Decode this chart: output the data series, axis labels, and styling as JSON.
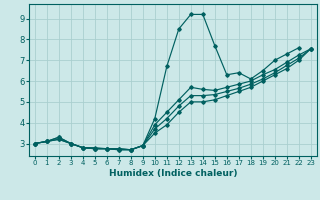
{
  "xlabel": "Humidex (Indice chaleur)",
  "background_color": "#cce8e8",
  "grid_color": "#aacfcf",
  "line_color": "#006060",
  "xlim": [
    -0.5,
    23.5
  ],
  "ylim": [
    2.4,
    9.7
  ],
  "xticks": [
    0,
    1,
    2,
    3,
    4,
    5,
    6,
    7,
    8,
    9,
    10,
    11,
    12,
    13,
    14,
    15,
    16,
    17,
    18,
    19,
    20,
    21,
    22,
    23
  ],
  "yticks": [
    3,
    4,
    5,
    6,
    7,
    8,
    9
  ],
  "x_spike": [
    0,
    1,
    2,
    3,
    4,
    5,
    6,
    7,
    8,
    9,
    10,
    11,
    12,
    13,
    14,
    15,
    16,
    17,
    18,
    19,
    20,
    21,
    22
  ],
  "y_spike": [
    3.0,
    3.1,
    3.2,
    3.0,
    2.8,
    2.8,
    2.75,
    2.7,
    2.7,
    2.9,
    4.2,
    6.7,
    8.5,
    9.2,
    9.2,
    7.7,
    6.3,
    6.4,
    6.1,
    6.5,
    7.0,
    7.3,
    7.6
  ],
  "x_avg": [
    0,
    1,
    2,
    3,
    4,
    5,
    6,
    7,
    8,
    9,
    10,
    11,
    12,
    13,
    14,
    15,
    16,
    17,
    18,
    19,
    20,
    21,
    22,
    23
  ],
  "y_line1": [
    3.0,
    3.1,
    3.2,
    3.0,
    2.8,
    2.75,
    2.75,
    2.7,
    2.7,
    2.9,
    3.5,
    3.9,
    4.5,
    5.0,
    5.0,
    5.1,
    5.3,
    5.5,
    5.7,
    6.0,
    6.3,
    6.6,
    7.0,
    7.55
  ],
  "y_line2": [
    3.0,
    3.1,
    3.3,
    3.0,
    2.8,
    2.75,
    2.75,
    2.75,
    2.7,
    2.9,
    3.7,
    4.2,
    4.8,
    5.3,
    5.3,
    5.35,
    5.5,
    5.65,
    5.85,
    6.1,
    6.4,
    6.75,
    7.1,
    7.55
  ],
  "y_line3": [
    3.0,
    3.1,
    3.3,
    3.0,
    2.8,
    2.75,
    2.75,
    2.75,
    2.7,
    2.9,
    3.9,
    4.5,
    5.1,
    5.7,
    5.6,
    5.55,
    5.7,
    5.85,
    6.0,
    6.3,
    6.55,
    6.9,
    7.25,
    7.55
  ]
}
